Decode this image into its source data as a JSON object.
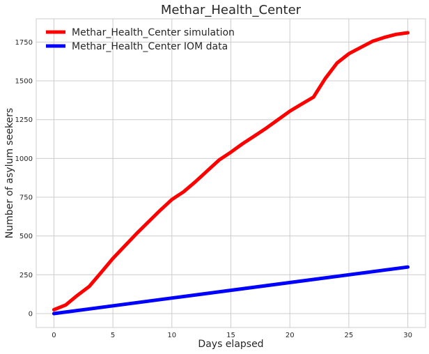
{
  "chart_data": {
    "type": "line",
    "title": "Methar_Health_Center",
    "xlabel": "Days elapsed",
    "ylabel": "Number of asylum seekers",
    "xlim": [
      -1.5,
      31.5
    ],
    "ylim": [
      -90,
      1900
    ],
    "xticks": [
      0,
      5,
      10,
      15,
      20,
      25,
      30
    ],
    "yticks": [
      0,
      250,
      500,
      750,
      1000,
      1250,
      1500,
      1750
    ],
    "grid": true,
    "legend": "top-left",
    "series": [
      {
        "name": "Methar_Health_Center simulation",
        "color": "#ff0000",
        "x": [
          0,
          1,
          2,
          3,
          4,
          5,
          6,
          7,
          8,
          9,
          10,
          11,
          12,
          13,
          14,
          15,
          16,
          17,
          18,
          19,
          20,
          21,
          22,
          23,
          24,
          25,
          26,
          27,
          28,
          29,
          30
        ],
        "y": [
          25,
          55,
          118,
          175,
          265,
          355,
          435,
          515,
          590,
          665,
          735,
          785,
          850,
          920,
          990,
          1040,
          1095,
          1145,
          1195,
          1250,
          1305,
          1350,
          1395,
          1515,
          1615,
          1675,
          1715,
          1755,
          1780,
          1800,
          1810
        ]
      },
      {
        "name": "Methar_Health_Center IOM data",
        "color": "#0000ff",
        "x": [
          0,
          10,
          11,
          22,
          30
        ],
        "y": [
          0,
          100,
          110,
          220,
          300
        ]
      }
    ]
  }
}
